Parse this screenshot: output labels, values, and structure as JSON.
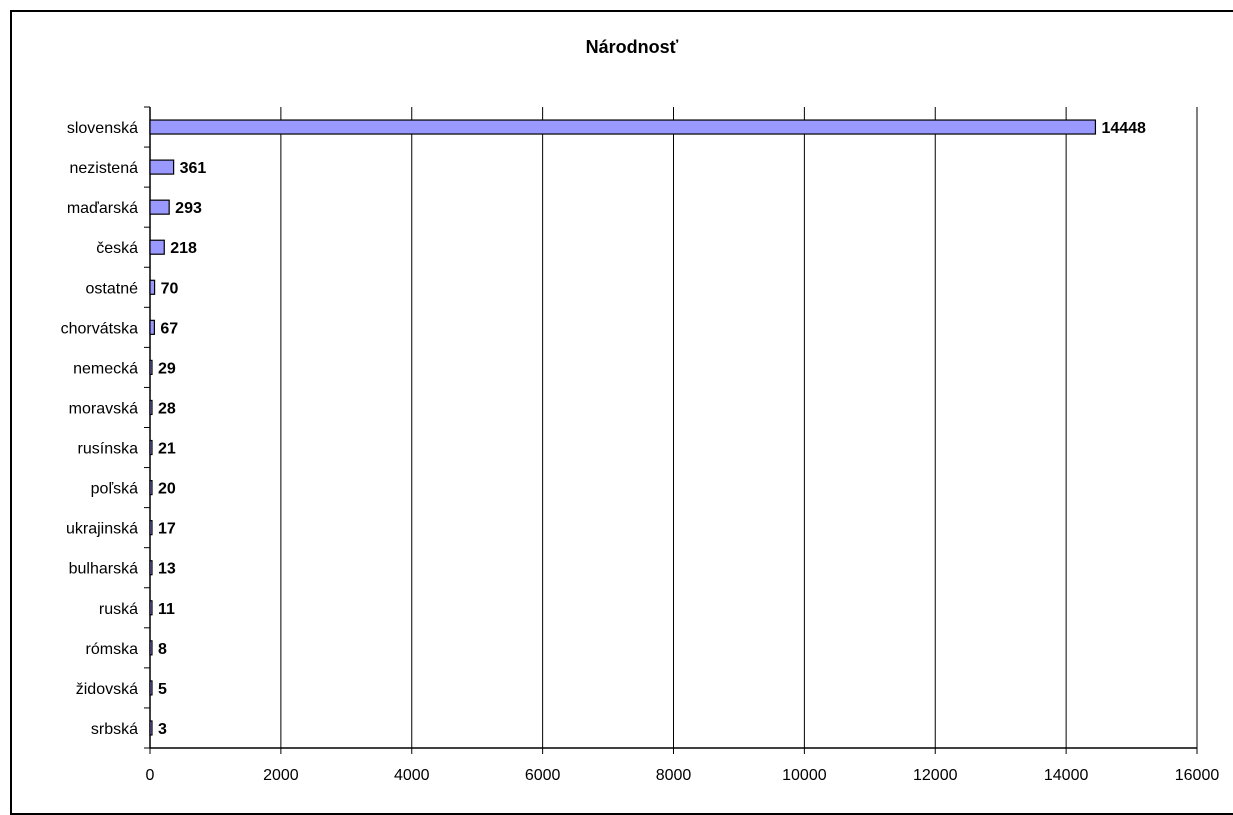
{
  "chart_data": {
    "type": "bar",
    "orientation": "horizontal",
    "title": "Národnosť",
    "xlabel": "",
    "ylabel": "",
    "categories": [
      "slovenská",
      "nezistená",
      "maďarská",
      "česká",
      "ostatné",
      "chorvátska",
      "nemecká",
      "moravská",
      "rusínska",
      "poľská",
      "ukrajinská",
      "bulharská",
      "ruská",
      "rómska",
      "židovská",
      "srbská"
    ],
    "values": [
      14448,
      361,
      293,
      218,
      70,
      67,
      29,
      28,
      21,
      20,
      17,
      13,
      11,
      8,
      5,
      3
    ],
    "xlim": [
      0,
      16000
    ],
    "xticks": [
      0,
      2000,
      4000,
      6000,
      8000,
      10000,
      12000,
      14000,
      16000
    ],
    "grid": "vertical",
    "legend": "none",
    "data_labels": "bold",
    "bar_color": "#9999ff",
    "bar_edge_color": "#000000"
  }
}
